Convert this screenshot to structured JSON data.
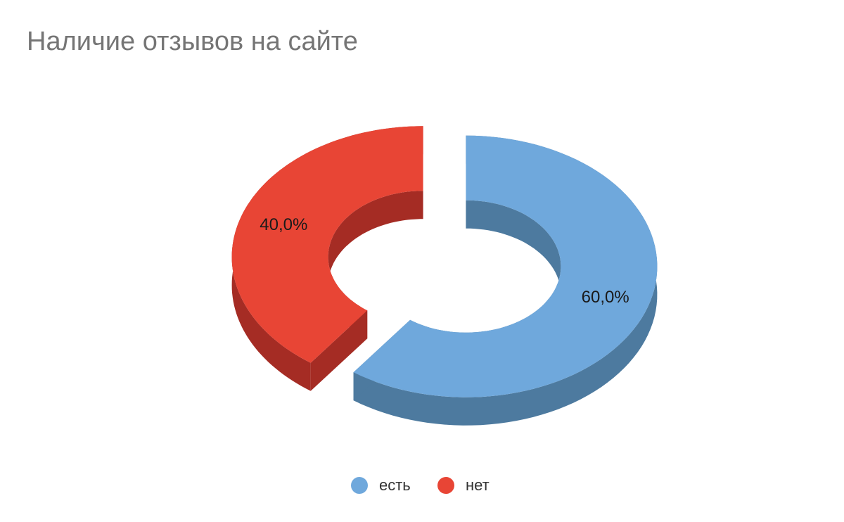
{
  "chart_data": {
    "type": "pie",
    "style": "3d-donut",
    "title": "Наличие отзывов на сайте",
    "legend_position": "bottom",
    "slices": [
      {
        "label": "есть",
        "value": 60.0,
        "value_label": "60,0%",
        "color": "#6fa8dc",
        "side_color": "#4d7a9f"
      },
      {
        "label": "нет",
        "value": 40.0,
        "value_label": "40,0%",
        "color": "#e84535",
        "side_color": "#a52c24"
      }
    ]
  }
}
